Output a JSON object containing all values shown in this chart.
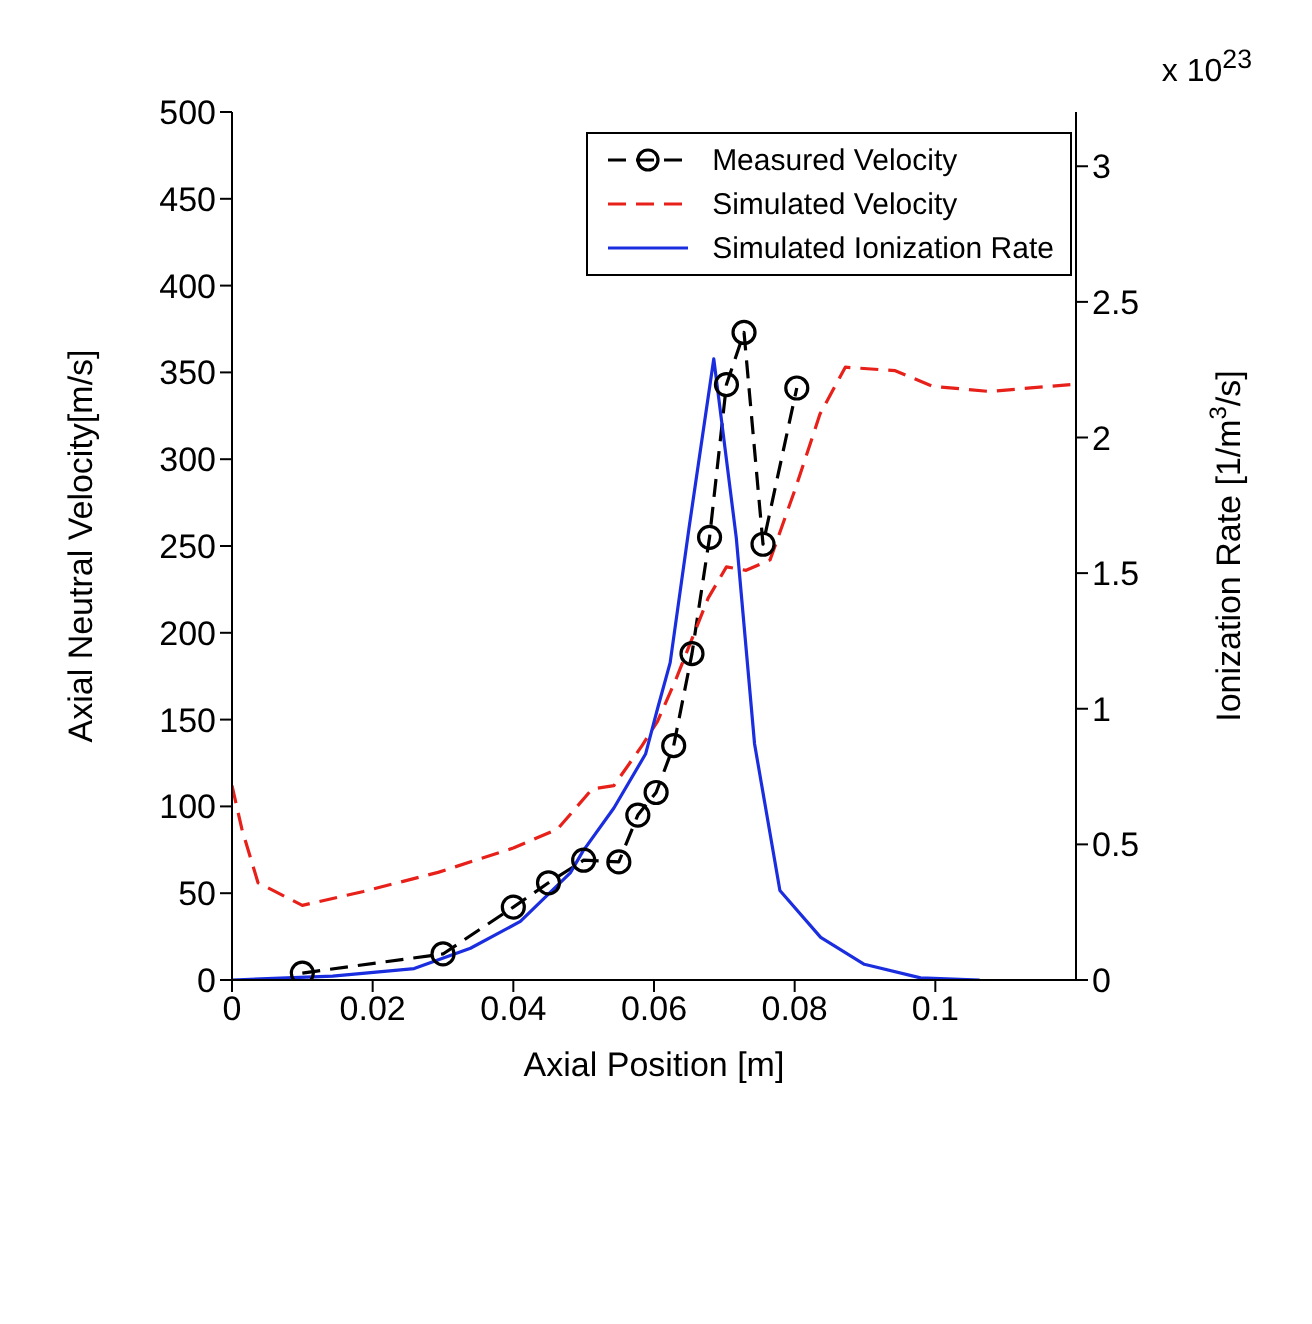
{
  "chart_data": {
    "type": "line",
    "xlabel": "Axial Position [m]",
    "ylabel": "Axial Neutral Velocity[m/s]",
    "y2label": "Ionization Rate [1/m$^{3}$/s]",
    "annotations": [
      "x 10$^{23}$"
    ],
    "xlim": [
      0,
      0.12
    ],
    "xticks": [
      0,
      0.02,
      0.04,
      0.06,
      0.08,
      0.1
    ],
    "ylim": [
      0,
      500
    ],
    "yticks": [
      0,
      50,
      100,
      150,
      200,
      250,
      300,
      350,
      400,
      450,
      500
    ],
    "y2lim": [
      0,
      3.2
    ],
    "y2ticks": [
      0,
      0.5,
      1,
      1.5,
      2,
      2.5,
      3
    ],
    "legend": "top right",
    "series": [
      {
        "name": "Measured Velocity",
        "color": "#000000",
        "marker": "circle",
        "line_style": "dashed",
        "x": [
          0.01,
          0.03,
          0.04,
          0.045,
          0.05,
          0.055,
          0.0577,
          0.0603,
          0.0628,
          0.0654,
          0.0679,
          0.0703,
          0.0728,
          0.0755,
          0.0803
        ],
        "values": [
          4,
          15,
          42,
          56,
          69,
          68,
          95,
          108,
          135,
          188,
          255,
          343,
          373,
          251,
          341
        ]
      },
      {
        "name": "Simulated Velocity",
        "color": "#e8201a",
        "marker": "none",
        "line_style": "dashed",
        "x": [
          0,
          0.0014,
          0.0037,
          0.01,
          0.0187,
          0.0293,
          0.04,
          0.0463,
          0.0512,
          0.0543,
          0.0583,
          0.0605,
          0.0632,
          0.0677,
          0.0703,
          0.0731,
          0.0765,
          0.0801,
          0.0836,
          0.0872,
          0.0943,
          0.0996,
          0.1077,
          0.1192
        ],
        "values": [
          112,
          87,
          56,
          43,
          51,
          62,
          76,
          87,
          110,
          112,
          135,
          149,
          174,
          220,
          238,
          236,
          242,
          283,
          326,
          353,
          351,
          342,
          339,
          343
        ]
      },
      {
        "name": "Simulated Ionization Rate",
        "color": "#1a2ee0",
        "marker": "none",
        "line_style": "solid",
        "axis": "y2",
        "x": [
          0,
          0.0143,
          0.0259,
          0.0339,
          0.041,
          0.0481,
          0.0499,
          0.0543,
          0.0588,
          0.0605,
          0.0623,
          0.065,
          0.0685,
          0.0717,
          0.0743,
          0.0779,
          0.0837,
          0.0899,
          0.0979,
          0.1063
        ],
        "values": [
          0,
          0.014,
          0.042,
          0.117,
          0.216,
          0.395,
          0.475,
          0.634,
          0.833,
          1.0,
          1.17,
          1.67,
          2.29,
          1.63,
          0.87,
          0.33,
          0.157,
          0.058,
          0.008,
          0
        ]
      }
    ]
  }
}
